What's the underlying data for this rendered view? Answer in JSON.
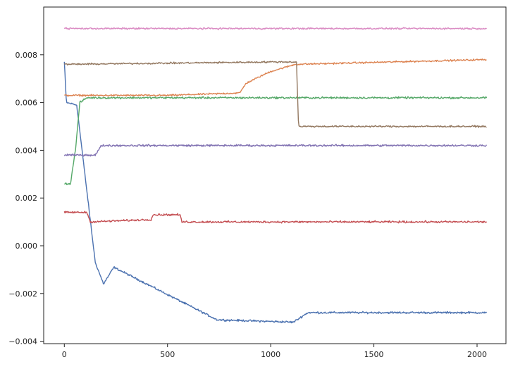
{
  "chart_data": {
    "type": "line",
    "title": "",
    "xlabel": "",
    "ylabel": "",
    "xlim": [
      -100,
      2140
    ],
    "ylim": [
      -0.0041,
      0.01
    ],
    "xticks": [
      0,
      500,
      1000,
      1500,
      2000
    ],
    "xtick_labels": [
      "0",
      "500",
      "1000",
      "1500",
      "2000"
    ],
    "yticks": [
      -0.004,
      -0.002,
      0.0,
      0.002,
      0.004,
      0.006,
      0.008
    ],
    "ytick_labels": [
      "−0.004",
      "−0.002",
      "0.000",
      "0.002",
      "0.004",
      "0.006",
      "0.008"
    ],
    "grid": false,
    "legend": "none",
    "x_max": 2048,
    "series": [
      {
        "color": "#4c72b0",
        "noise": 6e-05,
        "segments": [
          [
            0,
            0.0077
          ],
          [
            10,
            0.006
          ],
          [
            60,
            0.0059
          ],
          [
            150,
            -0.0007
          ],
          [
            190,
            -0.0016
          ],
          [
            240,
            -0.0009
          ],
          [
            740,
            -0.0031
          ],
          [
            1110,
            -0.0032
          ],
          [
            1180,
            -0.0028
          ],
          [
            2048,
            -0.0028
          ]
        ]
      },
      {
        "color": "#dd8452",
        "noise": 5e-05,
        "segments": [
          [
            0,
            0.0063
          ],
          [
            500,
            0.0063
          ],
          [
            850,
            0.0064
          ],
          [
            880,
            0.0068
          ],
          [
            950,
            0.0071
          ],
          [
            1000,
            0.0073
          ],
          [
            1120,
            0.0076
          ],
          [
            2048,
            0.0078
          ]
        ]
      },
      {
        "color": "#55a868",
        "noise": 6e-05,
        "segments": [
          [
            0,
            0.0026
          ],
          [
            30,
            0.0026
          ],
          [
            55,
            0.0041
          ],
          [
            75,
            0.006
          ],
          [
            110,
            0.0062
          ],
          [
            2048,
            0.0062
          ]
        ]
      },
      {
        "color": "#c44e52",
        "noise": 6e-05,
        "segments": [
          [
            0,
            0.0014
          ],
          [
            110,
            0.0014
          ],
          [
            125,
            0.001
          ],
          [
            420,
            0.0011
          ],
          [
            430,
            0.0013
          ],
          [
            560,
            0.0013
          ],
          [
            570,
            0.001
          ],
          [
            2048,
            0.001
          ]
        ]
      },
      {
        "color": "#8172b2",
        "noise": 6e-05,
        "segments": [
          [
            0,
            0.0038
          ],
          [
            150,
            0.0038
          ],
          [
            180,
            0.0042
          ],
          [
            2048,
            0.0042
          ]
        ]
      },
      {
        "color": "#937860",
        "noise": 5e-05,
        "segments": [
          [
            0,
            0.0076
          ],
          [
            1000,
            0.0077
          ],
          [
            1125,
            0.0077
          ],
          [
            1135,
            0.005
          ],
          [
            2048,
            0.005
          ]
        ]
      },
      {
        "color": "#da8bc3",
        "noise": 5e-05,
        "segments": [
          [
            0,
            0.0091
          ],
          [
            2048,
            0.0091
          ]
        ]
      }
    ]
  }
}
